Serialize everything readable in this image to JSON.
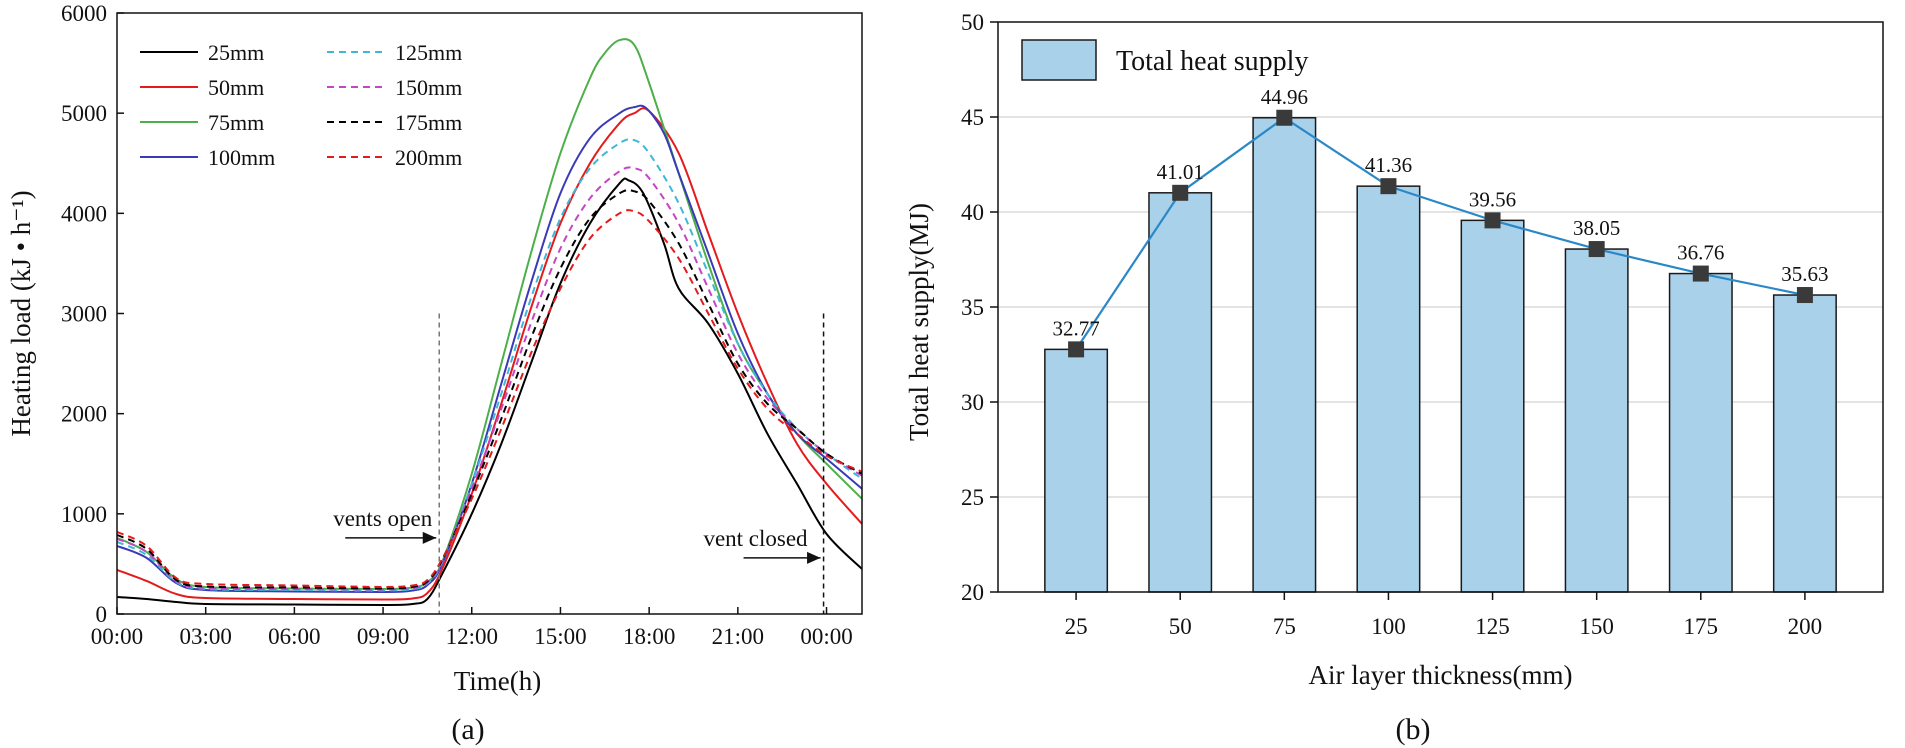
{
  "panel_a_label": "(a)",
  "panel_b_label": "(b)",
  "chart_data": [
    {
      "type": "line",
      "title": "",
      "xlabel": "Time(h)",
      "ylabel": "Heating load (kJ • h⁻¹)",
      "xlim": [
        0,
        25.2
      ],
      "ylim": [
        0,
        6000
      ],
      "xticks": [
        0,
        3,
        6,
        9,
        12,
        15,
        18,
        21,
        24
      ],
      "xtick_labels": [
        "00:00",
        "03:00",
        "06:00",
        "09:00",
        "12:00",
        "15:00",
        "18:00",
        "21:00",
        "00:00"
      ],
      "yticks": [
        0,
        1000,
        2000,
        3000,
        4000,
        5000,
        6000
      ],
      "ytick_labels": [
        "0",
        "1000",
        "2000",
        "3000",
        "4000",
        "5000",
        "6000"
      ],
      "grid": false,
      "legend_position": "top-left",
      "annotations": [
        {
          "text": "vents open",
          "x": 10.9
        },
        {
          "text": "vent closed",
          "x": 23.9
        }
      ],
      "series": [
        {
          "name": "25mm",
          "color": "#000000",
          "dash": false,
          "x": [
            0,
            1,
            2,
            3,
            6,
            9,
            10,
            10.5,
            11,
            12,
            13,
            14,
            15,
            16,
            17,
            17.3,
            17.8,
            18.5,
            19,
            20,
            21,
            22,
            23,
            24,
            25.2
          ],
          "y": [
            170,
            150,
            120,
            100,
            95,
            90,
            100,
            150,
            400,
            1000,
            1700,
            2500,
            3300,
            3900,
            4300,
            4330,
            4200,
            3700,
            3250,
            2900,
            2400,
            1800,
            1300,
            800,
            450
          ]
        },
        {
          "name": "50mm",
          "color": "#e41a1c",
          "dash": false,
          "x": [
            0,
            1,
            2,
            3,
            6,
            9,
            10,
            10.5,
            11,
            12,
            13,
            14,
            15,
            16,
            17,
            17.5,
            18,
            19,
            20,
            21,
            22,
            23,
            24,
            25.2
          ],
          "y": [
            440,
            330,
            200,
            160,
            150,
            145,
            155,
            210,
            450,
            1200,
            2100,
            3050,
            3900,
            4500,
            4900,
            5000,
            5020,
            4600,
            3800,
            3000,
            2300,
            1700,
            1300,
            900
          ]
        },
        {
          "name": "75mm",
          "color": "#4daf4a",
          "dash": false,
          "x": [
            0,
            1,
            2,
            3,
            6,
            9,
            10,
            10.5,
            11,
            12,
            13,
            14,
            15,
            16,
            16.5,
            17,
            17.5,
            18,
            19,
            20,
            21,
            22,
            23,
            24,
            25.2
          ],
          "y": [
            760,
            620,
            350,
            270,
            255,
            250,
            265,
            320,
            520,
            1400,
            2500,
            3600,
            4600,
            5350,
            5600,
            5730,
            5680,
            5300,
            4400,
            3500,
            2700,
            2200,
            1800,
            1500,
            1150
          ]
        },
        {
          "name": "100mm",
          "color": "#3a3ab8",
          "dash": false,
          "x": [
            0,
            1,
            2,
            3,
            6,
            9,
            10,
            10.5,
            11,
            12,
            13,
            14,
            15,
            16,
            17,
            17.5,
            17.9,
            18.5,
            19,
            20,
            21,
            22,
            23,
            24,
            25.2
          ],
          "y": [
            680,
            560,
            310,
            240,
            225,
            220,
            235,
            290,
            500,
            1300,
            2300,
            3300,
            4200,
            4750,
            5000,
            5060,
            5050,
            4800,
            4400,
            3600,
            2800,
            2200,
            1800,
            1550,
            1250
          ]
        },
        {
          "name": "125mm",
          "color": "#3fb8d8",
          "dash": true,
          "x": [
            0,
            1,
            2,
            3,
            6,
            9,
            10,
            10.5,
            11,
            12,
            13,
            14,
            15,
            16,
            17,
            17.5,
            18,
            19,
            20,
            21,
            22,
            23,
            24,
            25.2
          ],
          "y": [
            720,
            590,
            320,
            250,
            240,
            235,
            250,
            305,
            520,
            1300,
            2200,
            3150,
            3950,
            4450,
            4700,
            4730,
            4600,
            4100,
            3400,
            2700,
            2200,
            1850,
            1600,
            1350
          ]
        },
        {
          "name": "150mm",
          "color": "#c545c5",
          "dash": true,
          "x": [
            0,
            1,
            2,
            3,
            6,
            9,
            10,
            10.5,
            11,
            12,
            13,
            14,
            15,
            16,
            17,
            17.5,
            18,
            19,
            20,
            21,
            22,
            23,
            24,
            25.2
          ],
          "y": [
            750,
            620,
            330,
            260,
            250,
            245,
            260,
            315,
            530,
            1250,
            2050,
            2900,
            3650,
            4150,
            4420,
            4450,
            4350,
            3900,
            3250,
            2600,
            2150,
            1850,
            1600,
            1380
          ]
        },
        {
          "name": "175mm",
          "color": "#000000",
          "dash": true,
          "x": [
            0,
            1,
            2,
            3,
            6,
            9,
            10,
            10.5,
            11,
            12,
            13,
            14,
            15,
            16,
            17,
            17.5,
            18,
            19,
            20,
            21,
            22,
            23,
            24,
            25.2
          ],
          "y": [
            790,
            650,
            340,
            275,
            265,
            255,
            270,
            325,
            540,
            1200,
            1950,
            2750,
            3450,
            3950,
            4200,
            4220,
            4120,
            3700,
            3100,
            2500,
            2100,
            1850,
            1600,
            1400
          ]
        },
        {
          "name": "200mm",
          "color": "#e41a1c",
          "dash": true,
          "x": [
            0,
            1,
            2,
            3,
            6,
            9,
            10,
            10.5,
            11,
            12,
            13,
            14,
            15,
            16,
            17,
            17.5,
            18,
            19,
            20,
            21,
            22,
            23,
            24,
            25.2
          ],
          "y": [
            820,
            680,
            360,
            300,
            285,
            270,
            285,
            340,
            550,
            1150,
            1850,
            2600,
            3250,
            3750,
            4000,
            4020,
            3920,
            3550,
            3000,
            2450,
            2050,
            1800,
            1580,
            1420
          ]
        }
      ]
    },
    {
      "type": "bar",
      "title": "",
      "xlabel": "Air layer thickness(mm)",
      "ylabel": "Total heat supply(MJ)",
      "categories": [
        "25",
        "50",
        "75",
        "100",
        "125",
        "150",
        "175",
        "200"
      ],
      "ylim": [
        20,
        50
      ],
      "yticks": [
        20,
        25,
        30,
        35,
        40,
        45,
        50
      ],
      "ytick_labels": [
        "20",
        "25",
        "30",
        "35",
        "40",
        "45",
        "50"
      ],
      "grid": true,
      "legend_position": "top-left",
      "series": [
        {
          "name": "Total heat supply",
          "values": [
            32.77,
            41.01,
            44.96,
            41.36,
            39.56,
            38.05,
            36.76,
            35.63
          ],
          "labels": [
            "32.77",
            "41.01",
            "44.96",
            "41.36",
            "39.56",
            "38.05",
            "36.76",
            "35.63"
          ],
          "bar_color": "#a9d1ea",
          "line_color": "#2a88c8",
          "marker_color": "#3a3a3a"
        }
      ]
    }
  ]
}
